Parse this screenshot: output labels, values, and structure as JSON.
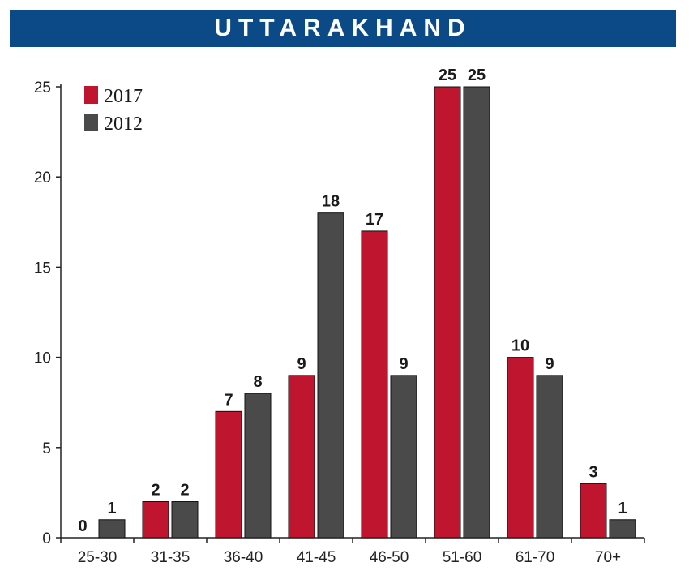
{
  "title": "UTTARAKHAND",
  "colors": {
    "banner": "#0b4a87",
    "series_2017": "#c0152f",
    "series_2012": "#4a4a4a"
  },
  "chart_data": {
    "type": "bar",
    "title": "UTTARAKHAND",
    "xlabel": "",
    "ylabel": "",
    "categories": [
      "25-30",
      "31-35",
      "36-40",
      "41-45",
      "46-50",
      "51-60",
      "61-70",
      "70+"
    ],
    "series": [
      {
        "name": "2017",
        "color": "#c0152f",
        "values": [
          0,
          2,
          7,
          9,
          17,
          25,
          10,
          3
        ]
      },
      {
        "name": "2012",
        "color": "#4a4a4a",
        "values": [
          1,
          2,
          8,
          18,
          9,
          25,
          9,
          1
        ]
      }
    ],
    "ylim": [
      0,
      25
    ],
    "yticks": [
      0,
      5,
      10,
      15,
      20,
      25
    ],
    "grid": false,
    "legend_position": "top-left"
  }
}
